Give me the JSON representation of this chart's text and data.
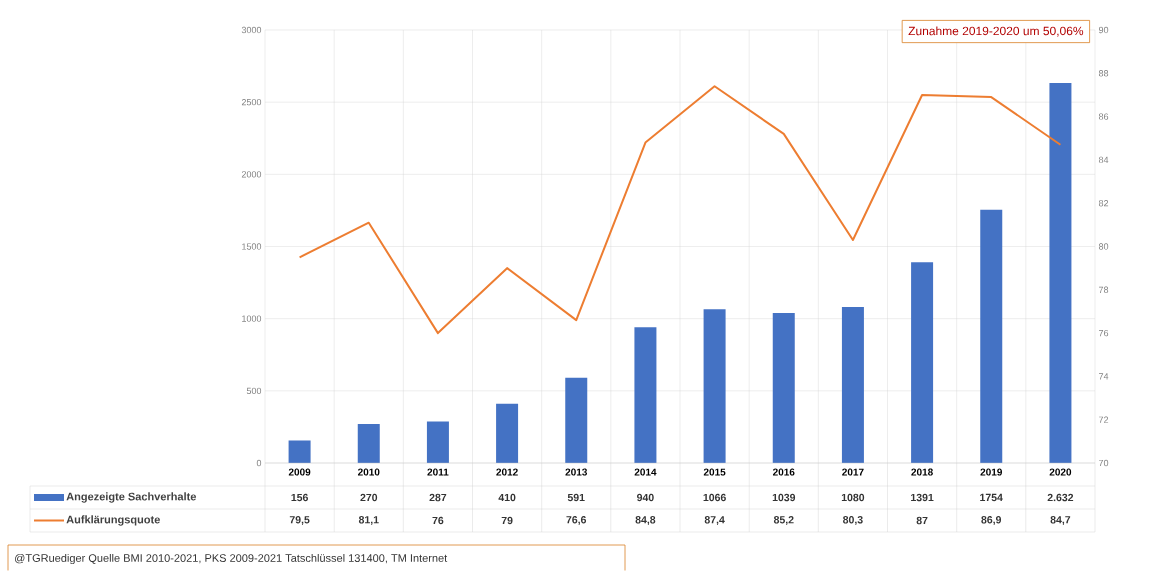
{
  "chart_data": {
    "type": "bar",
    "categories": [
      "2009",
      "2010",
      "2011",
      "2012",
      "2013",
      "2014",
      "2015",
      "2016",
      "2017",
      "2018",
      "2019",
      "2020"
    ],
    "series": [
      {
        "name": "Angezeigte Sachverhalte",
        "color": "#4472c4",
        "values": [
          156,
          270,
          287,
          410,
          591,
          940,
          1066,
          1039,
          1080,
          1391,
          1754,
          2632
        ],
        "value_labels": [
          "156",
          "270",
          "287",
          "410",
          "591",
          "940",
          "1066",
          "1039",
          "1080",
          "1391",
          "1754",
          "2.632"
        ]
      },
      {
        "name": "Aufklärungsquote",
        "type": "line",
        "axis": "y2",
        "color": "#ed7d31",
        "values": [
          79.5,
          81.1,
          76,
          79,
          76.6,
          84.8,
          87.4,
          85.2,
          80.3,
          87,
          86.9,
          84.7
        ],
        "value_labels": [
          "79,5",
          "81,1",
          "76",
          "79",
          "76,6",
          "84,8",
          "87,4",
          "85,2",
          "80,3",
          "87",
          "86,9",
          "84,7"
        ]
      }
    ],
    "ylim": [
      0,
      3000
    ],
    "yticks": [
      0,
      500,
      1000,
      1500,
      2000,
      2500,
      3000
    ],
    "y2lim": [
      70,
      90
    ],
    "y2ticks": [
      70,
      72,
      74,
      76,
      78,
      80,
      82,
      84,
      86,
      88,
      90
    ],
    "grid": true,
    "legend": "bottom left",
    "annotations": [
      "Zunahme 2019-2020 um 50,06%",
      "@TGRuediger Quelle BMI 2010-2021, PKS 2009-2021 Tatschlüssel 131400, TM Internet"
    ]
  }
}
